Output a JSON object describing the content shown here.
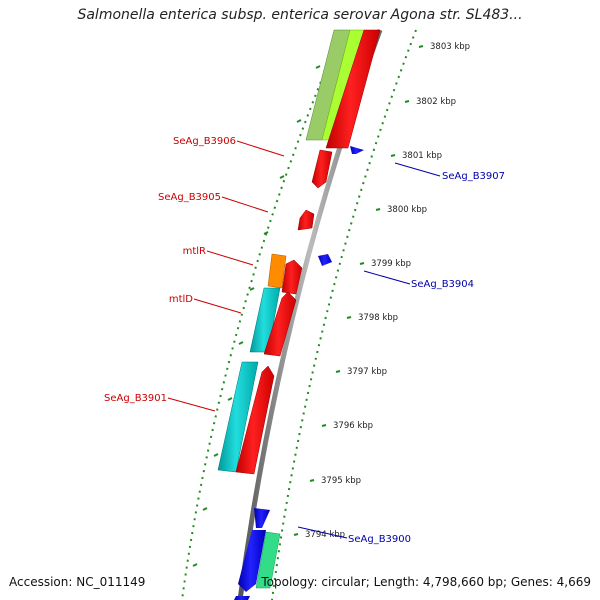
{
  "title": "Salmonella enterica subsp. enterica serovar Agona str. SL483...",
  "footer": {
    "accession": "Accession: NC_011149",
    "topology": "Topology: circular; Length: 4,798,660 bp; Genes: 4,669"
  },
  "ticks": [
    "3803 kbp",
    "3802 kbp",
    "3801 kbp",
    "3800 kbp",
    "3799 kbp",
    "3798 kbp",
    "3797 kbp",
    "3796 kbp",
    "3795 kbp",
    "3794 kbp"
  ],
  "gene_labels_left": [
    "SeAg_B3906",
    "SeAg_B3905",
    "mtlR",
    "mtlD",
    "SeAg_B3901"
  ],
  "gene_labels_right": [
    "SeAg_B3907",
    "SeAg_B3904",
    "SeAg_B3900"
  ],
  "colors": {
    "forward_gene": "#ff0000",
    "reverse_gene": "#0000ee",
    "cyan_feature": "#00cccc",
    "orange_feature": "#ff8c00",
    "lime_feature": "#aaff33",
    "backbone": "#888888",
    "ruler_dots": "#228b22"
  }
}
